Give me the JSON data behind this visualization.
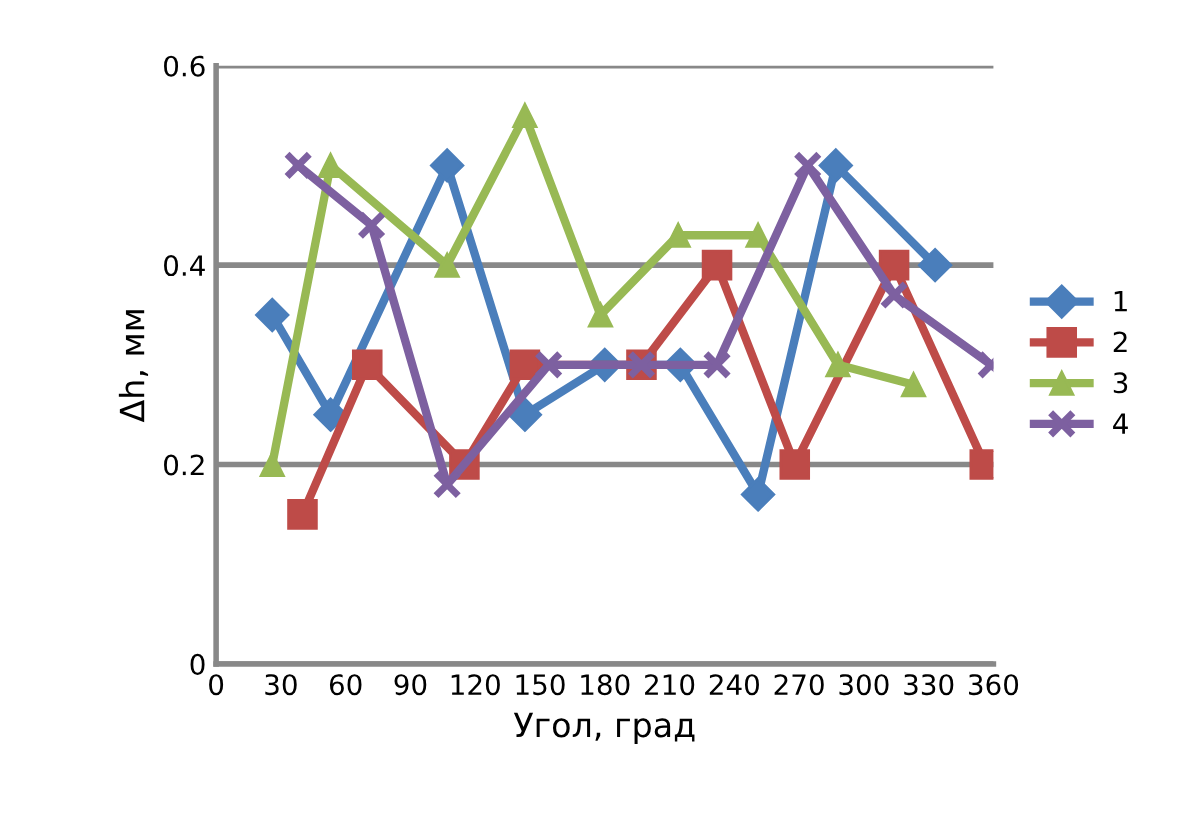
{
  "chart_data": {
    "type": "line",
    "xlabel": "Угол, град",
    "ylabel": "Δh, мм",
    "xlim": [
      0,
      360
    ],
    "xticks": [
      0,
      30,
      60,
      90,
      120,
      150,
      180,
      210,
      240,
      270,
      300,
      330,
      360
    ],
    "ylim": [
      0,
      0.6
    ],
    "yticks": [
      0,
      0.2,
      0.4,
      0.6
    ],
    "grid": "y",
    "legend": "right",
    "series": [
      {
        "name": "1",
        "color": "#4a7ebb",
        "marker": "diamond",
        "x": [
          26,
          53,
          107,
          143,
          180,
          215,
          251,
          287,
          333
        ],
        "values": [
          0.35,
          0.25,
          0.5,
          0.25,
          0.3,
          0.3,
          0.17,
          0.5,
          0.4
        ]
      },
      {
        "name": "2",
        "color": "#be4b48",
        "marker": "square",
        "x": [
          40,
          70,
          115,
          143,
          197,
          232,
          268,
          314,
          356
        ],
        "values": [
          0.15,
          0.3,
          0.2,
          0.3,
          0.3,
          0.4,
          0.2,
          0.4,
          0.2
        ]
      },
      {
        "name": "3",
        "color": "#98b954",
        "marker": "triangle",
        "x": [
          26,
          53,
          107,
          143,
          178,
          214,
          251,
          288,
          323
        ],
        "values": [
          0.2,
          0.5,
          0.4,
          0.55,
          0.35,
          0.43,
          0.43,
          0.3,
          0.28
        ]
      },
      {
        "name": "4",
        "color": "#7d60a0",
        "marker": "cross",
        "x": [
          38,
          72,
          107,
          154,
          197,
          232,
          274,
          314,
          359
        ],
        "values": [
          0.5,
          0.44,
          0.18,
          0.3,
          0.3,
          0.3,
          0.5,
          0.37,
          0.3
        ]
      }
    ]
  }
}
